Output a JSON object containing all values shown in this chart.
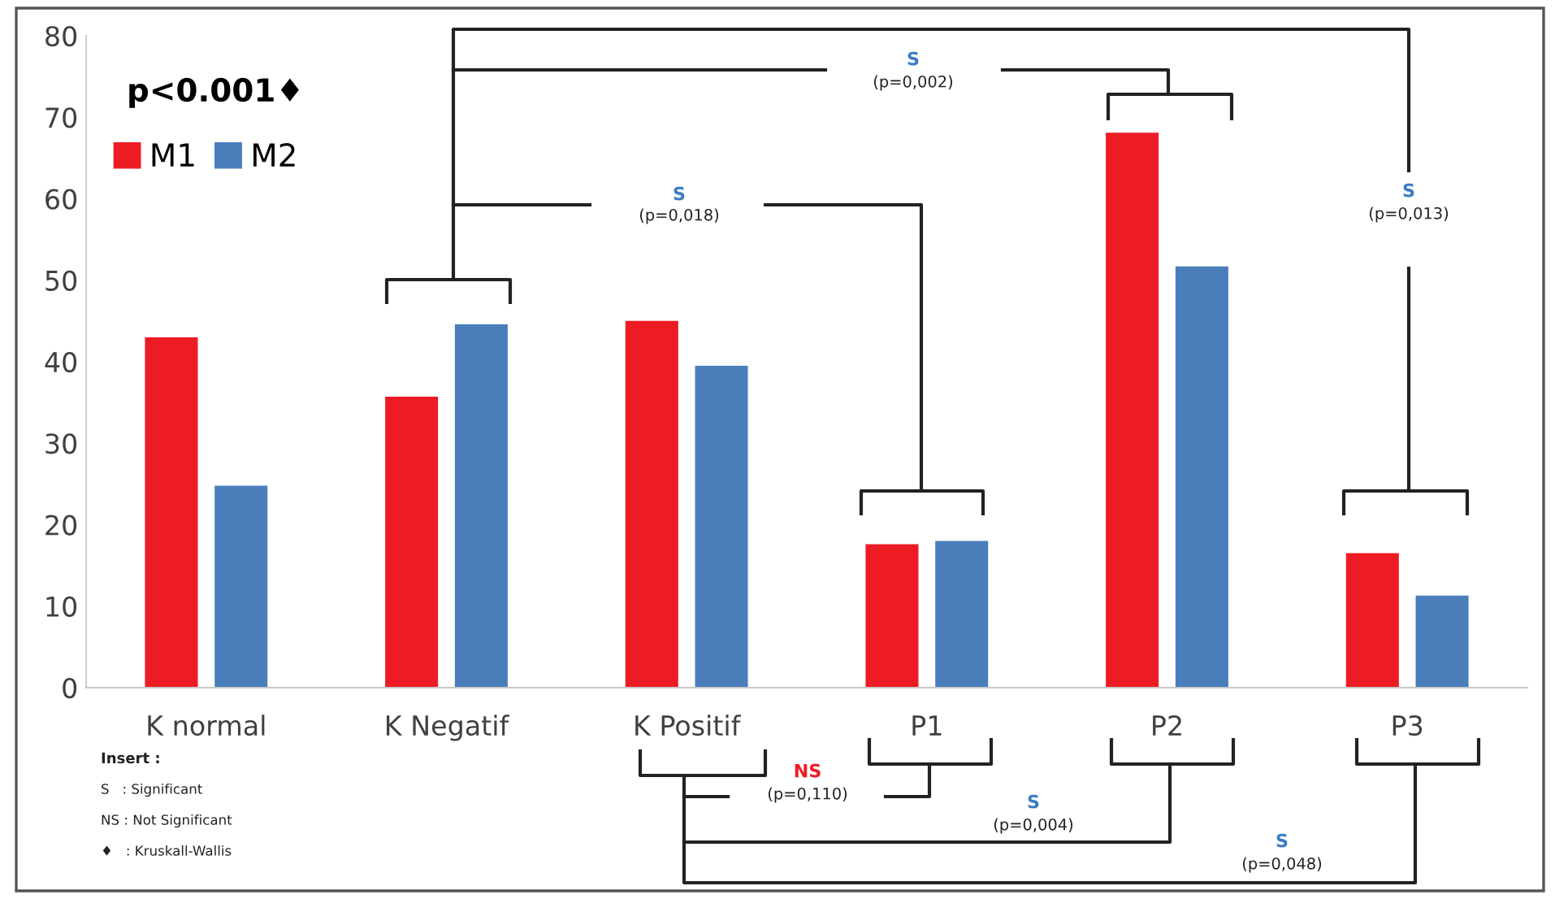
{
  "chart_data": {
    "type": "bar",
    "categories": [
      "K normal",
      "K Negatif",
      "K Positif",
      "P1",
      "P2",
      "P3"
    ],
    "series": [
      {
        "name": "M1",
        "color": "#ed1c24",
        "values": [
          43.0,
          35.7,
          45.0,
          17.6,
          68.1,
          16.5
        ]
      },
      {
        "name": "M2",
        "color": "#4a7ebb",
        "values": [
          24.8,
          44.6,
          39.5,
          18.0,
          51.7,
          11.3
        ]
      }
    ],
    "ylim": [
      0,
      80
    ],
    "yticks": [
      0,
      10,
      20,
      30,
      40,
      50,
      60,
      70,
      80
    ],
    "grid": false,
    "legend": "top left",
    "annotations": [
      "p<0.001♦",
      "S",
      "(p=0,002)",
      "S",
      "(p=0,018)",
      "S",
      "(p=0,013)",
      "NS",
      "(p=0,110)",
      "S",
      "(p=0,004)",
      "S",
      "(p=0,048)",
      "Insert :",
      "S   : Significant",
      "NS : Not Significant",
      "♦   : Kruskall-Wallis"
    ]
  }
}
